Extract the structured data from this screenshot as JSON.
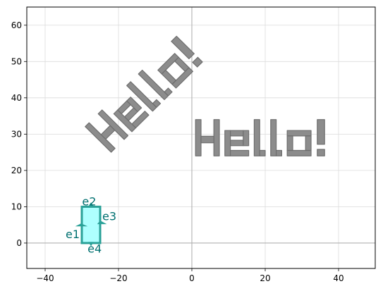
{
  "chart_data": {
    "type": "scatter",
    "title": "",
    "xlabel": "",
    "ylabel": "",
    "xlim": [
      -45,
      50
    ],
    "ylim": [
      -7,
      65
    ],
    "xticks": [
      -40,
      -20,
      0,
      20,
      40
    ],
    "yticks": [
      0,
      10,
      20,
      30,
      40,
      50,
      60
    ],
    "xtick_labels": [
      "−40",
      "−20",
      "0",
      "20",
      "40"
    ],
    "ytick_labels": [
      "0",
      "10",
      "20",
      "30",
      "40",
      "50",
      "60"
    ],
    "grid": true,
    "reference_lines": {
      "x": 0,
      "y": 0
    },
    "text_paths": [
      {
        "text": "Hello!",
        "origin": [
          -22,
          25
        ],
        "rotation_deg": 45,
        "fill": "#8c8c8c",
        "stroke": "#6e6e6e"
      },
      {
        "text": "Hello!",
        "origin": [
          1,
          24
        ],
        "rotation_deg": 0,
        "fill": "#8c8c8c",
        "stroke": "#6e6e6e"
      }
    ],
    "rectangle": {
      "x": [
        -30,
        -25
      ],
      "y": [
        0,
        10
      ],
      "fill": "#aaffff",
      "stroke": "#2aa198"
    },
    "edge_labels": [
      {
        "label": "e1",
        "x": -32.5,
        "y": 2.5,
        "color": "#007070"
      },
      {
        "label": "e2",
        "x": -28,
        "y": 11.5,
        "color": "#007070"
      },
      {
        "label": "e3",
        "x": -22.5,
        "y": 7.5,
        "color": "#007070"
      },
      {
        "label": "e4",
        "x": -26.5,
        "y": -1.5,
        "color": "#007070"
      }
    ],
    "colors": {
      "grid": "#dcdcdc",
      "reference": "#aaaaaa",
      "axes": "#000000"
    }
  }
}
